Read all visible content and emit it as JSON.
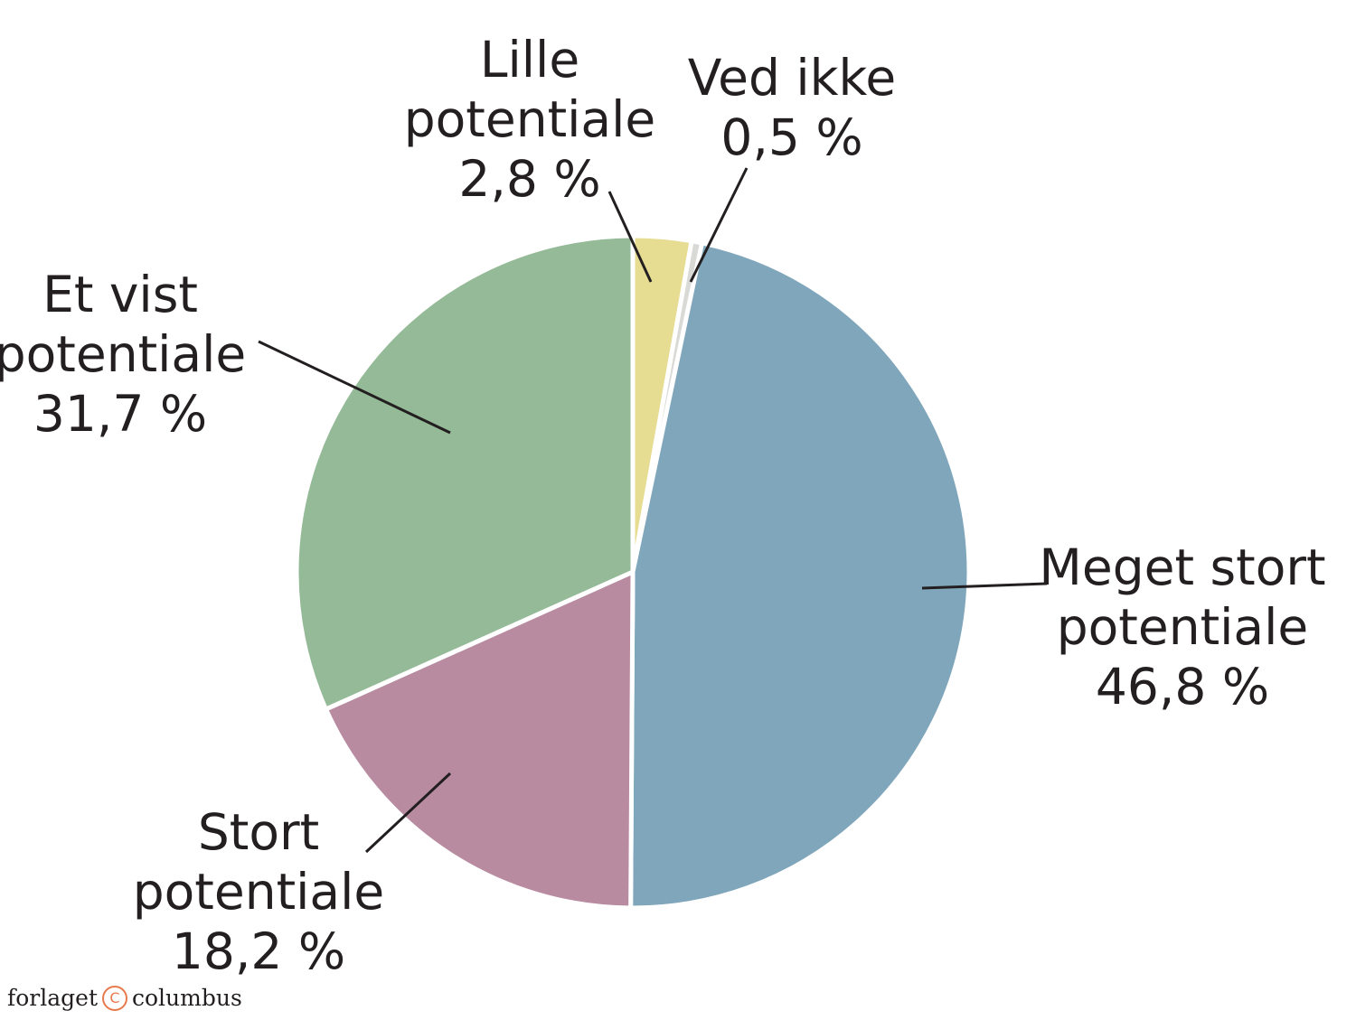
{
  "chart_data": {
    "type": "pie",
    "start_angle_deg": 0,
    "direction": "clockwise",
    "slices": [
      {
        "label_lines": [
          "Lille",
          "potentiale",
          "2,8 %"
        ],
        "value": 2.8,
        "color": "#e6dc92"
      },
      {
        "label_lines": [
          "Ved ikke",
          "0,5 %"
        ],
        "value": 0.5,
        "color": "#d9d9d6"
      },
      {
        "label_lines": [
          "Meget stort",
          "potentiale",
          "46,8 %"
        ],
        "value": 46.8,
        "color": "#80a6bb"
      },
      {
        "label_lines": [
          "Stort",
          "potentiale",
          "18,2 %"
        ],
        "value": 18.2,
        "color": "#b88ba1"
      },
      {
        "label_lines": [
          "Et vist",
          "potentiale",
          "31,7 %"
        ],
        "value": 31.7,
        "color": "#94ba97"
      }
    ]
  },
  "brand": {
    "text_before": "forlaget",
    "mark": "C",
    "text_after": "columbus",
    "accent": "#e87a4c"
  }
}
